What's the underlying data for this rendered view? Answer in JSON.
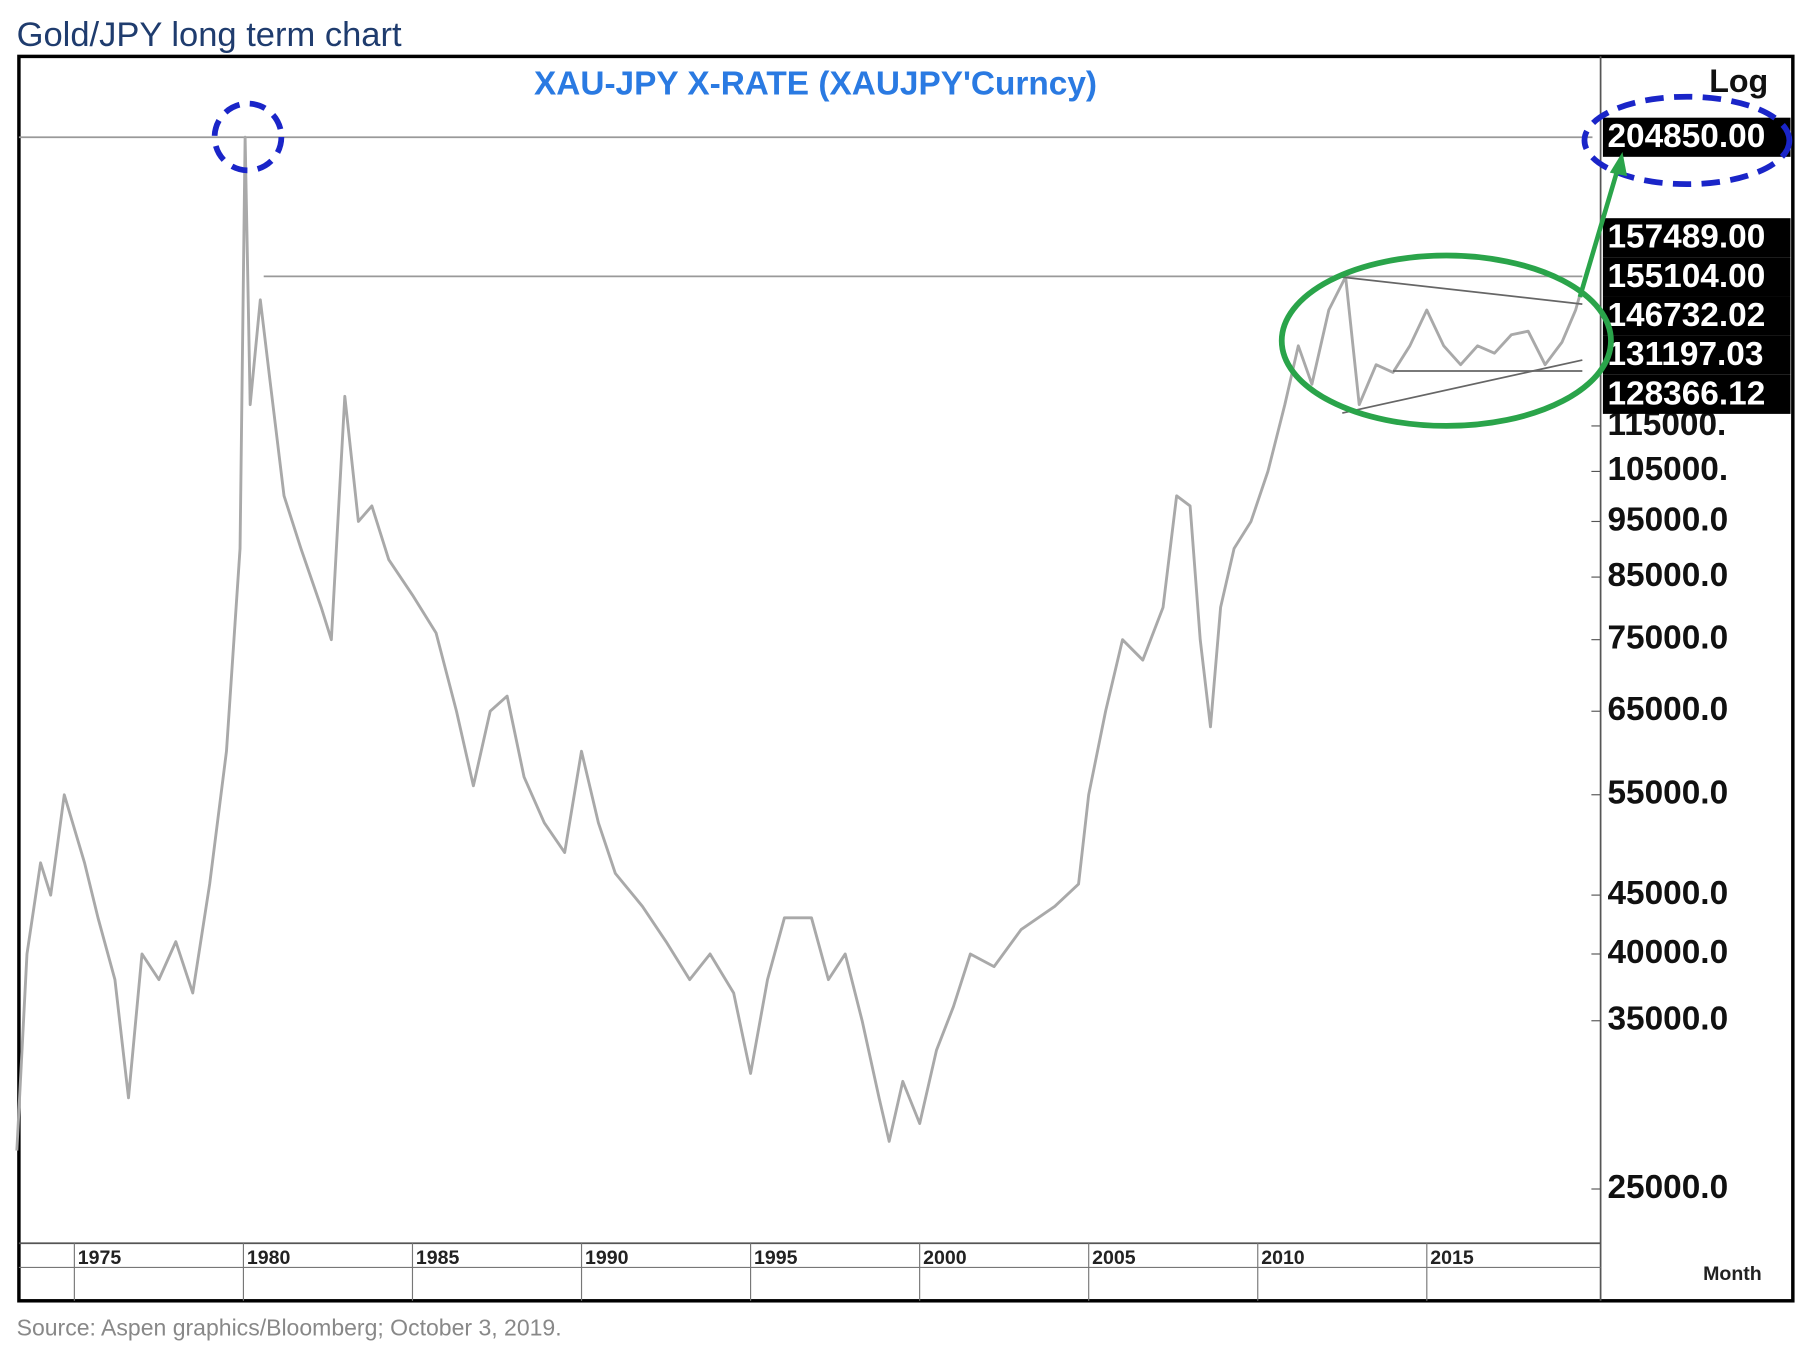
{
  "header": "Gold/JPY long term chart",
  "source": "Source: Aspen graphics/Bloomberg; October 3, 2019.",
  "chart_data": {
    "type": "line",
    "title": "XAU-JPY  X-RATE  (XAUJPY'Curncy)",
    "scale_label": "Log",
    "x_axis_label": "Month",
    "log_scale": true,
    "color": "#a9a9a9",
    "x": [
      1973.3,
      1973.6,
      1974.0,
      1974.3,
      1974.7,
      1975.3,
      1975.7,
      1976.2,
      1976.6,
      1977.0,
      1977.5,
      1978.0,
      1978.5,
      1979.0,
      1979.5,
      1979.9,
      1980.05,
      1980.2,
      1980.5,
      1980.8,
      1981.2,
      1981.7,
      1982.3,
      1982.6,
      1983.0,
      1983.4,
      1983.8,
      1984.3,
      1985.0,
      1985.7,
      1986.3,
      1986.8,
      1987.3,
      1987.8,
      1988.3,
      1988.9,
      1989.5,
      1990.0,
      1990.5,
      1991.0,
      1991.8,
      1992.5,
      1993.2,
      1993.8,
      1994.5,
      1995.0,
      1995.5,
      1996.0,
      1996.8,
      1997.3,
      1997.8,
      1998.3,
      1998.8,
      1999.1,
      1999.5,
      2000.0,
      2000.5,
      2001.0,
      2001.5,
      2002.2,
      2003.0,
      2004.0,
      2004.7,
      2005.0,
      2005.5,
      2006.0,
      2006.6,
      2007.2,
      2007.6,
      2008.0,
      2008.3,
      2008.6,
      2008.9,
      2009.3,
      2009.8,
      2010.3,
      2010.8,
      2011.2,
      2011.6,
      2012.1,
      2012.6,
      2013.0,
      2013.5,
      2014.0,
      2014.5,
      2015.0,
      2015.5,
      2016.0,
      2016.5,
      2017.0,
      2017.5,
      2018.0,
      2018.5,
      2019.0,
      2019.4,
      2019.75
    ],
    "values": [
      27000,
      40000,
      48000,
      45000,
      55000,
      48000,
      43000,
      38000,
      30000,
      40000,
      38000,
      41000,
      37000,
      46000,
      60000,
      90000,
      204850,
      120000,
      148000,
      125000,
      100000,
      90000,
      80000,
      75000,
      122000,
      95000,
      98000,
      88000,
      82000,
      76000,
      65000,
      56000,
      65000,
      67000,
      57000,
      52000,
      49000,
      60000,
      52000,
      47000,
      44000,
      41000,
      38000,
      40000,
      37000,
      31500,
      38000,
      43000,
      43000,
      38000,
      40000,
      35000,
      30000,
      27500,
      31000,
      28500,
      33000,
      36000,
      40000,
      39000,
      42000,
      44000,
      46000,
      55000,
      65000,
      75000,
      72000,
      80000,
      100000,
      98000,
      75000,
      63000,
      80000,
      90000,
      95000,
      105000,
      120000,
      135000,
      125000,
      145000,
      155000,
      120000,
      130000,
      128000,
      135000,
      145000,
      135000,
      130000,
      135000,
      133000,
      138000,
      139000,
      130000,
      136000,
      145000,
      157489
    ],
    "xlim": [
      1973.36,
      2020.14
    ],
    "xticks": [
      1975,
      1980,
      1985,
      1990,
      1995,
      2000,
      2005,
      2010,
      2015
    ],
    "ylim": [
      22430,
      240800
    ],
    "yticks": [
      {
        "value": 25000,
        "label": "25000.0"
      },
      {
        "value": 35000,
        "label": "35000.0"
      },
      {
        "value": 40000,
        "label": "40000.0"
      },
      {
        "value": 45000,
        "label": "45000.0"
      },
      {
        "value": 55000,
        "label": "55000.0"
      },
      {
        "value": 65000,
        "label": "65000.0"
      },
      {
        "value": 75000,
        "label": "75000.0"
      },
      {
        "value": 85000,
        "label": "85000.0"
      },
      {
        "value": 95000,
        "label": "95000.0"
      },
      {
        "value": 105000,
        "label": "105000."
      },
      {
        "value": 115000,
        "label": "115000."
      }
    ],
    "levels": [
      {
        "value": 204850,
        "label": "204850.00"
      },
      {
        "value": 157489,
        "label": "157489.00"
      },
      {
        "value": 155104,
        "label": "155104.00"
      },
      {
        "value": 146732,
        "label": "146732.02"
      },
      {
        "value": 131197,
        "label": "131197.03"
      },
      {
        "value": 128366,
        "label": "128366.12"
      }
    ],
    "hlines": [
      {
        "value": 204850,
        "x": [
          1973.36,
          2019.9
        ]
      },
      {
        "value": 155104,
        "x": [
          1980.6,
          2019.6
        ]
      }
    ],
    "trendlines": [
      {
        "x": [
          2012.3,
          2019.6
        ],
        "values": [
          155104,
          146732
        ]
      },
      {
        "x": [
          2012.5,
          2019.6
        ],
        "values": [
          118000,
          131197
        ]
      },
      {
        "x": [
          2014.0,
          2019.6
        ],
        "values": [
          128366,
          128366
        ]
      }
    ]
  }
}
